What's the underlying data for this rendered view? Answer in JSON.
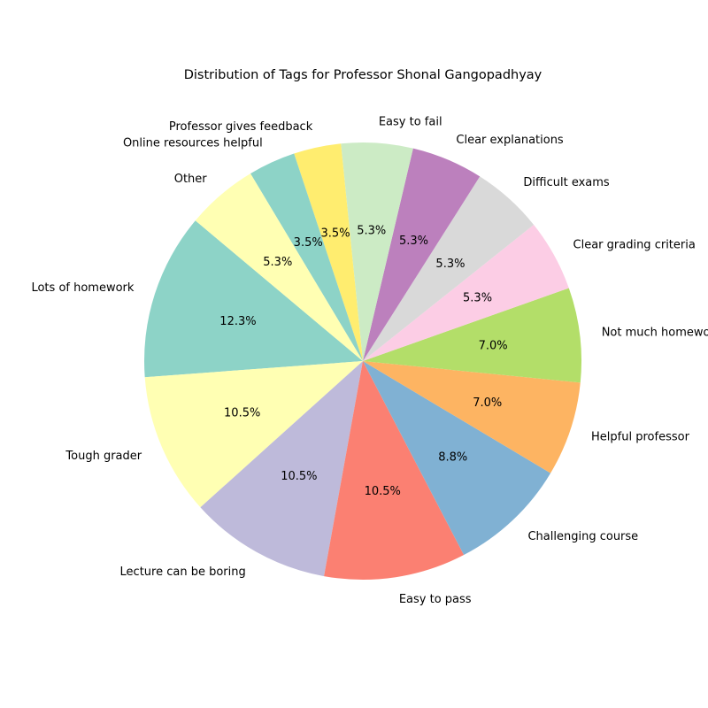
{
  "chart_data": {
    "type": "pie",
    "title": "Distribution of Tags for Professor Shonal Gangopadhyay",
    "start_angle_deg": 140,
    "direction": "counterclockwise",
    "slices": [
      {
        "label": "Lots of homework",
        "value": 12.3,
        "pct_label": "12.3%",
        "color": "#8dd3c7"
      },
      {
        "label": "Tough grader",
        "value": 10.5,
        "pct_label": "10.5%",
        "color": "#ffffb3"
      },
      {
        "label": "Lecture can be boring",
        "value": 10.5,
        "pct_label": "10.5%",
        "color": "#bebada"
      },
      {
        "label": "Easy to pass",
        "value": 10.5,
        "pct_label": "10.5%",
        "color": "#fb8072"
      },
      {
        "label": "Challenging course",
        "value": 8.8,
        "pct_label": "8.8%",
        "color": "#80b1d3"
      },
      {
        "label": "Helpful professor",
        "value": 7.0,
        "pct_label": "7.0%",
        "color": "#fdb462"
      },
      {
        "label": "Not much homework",
        "value": 7.0,
        "pct_label": "7.0%",
        "color": "#b3de69"
      },
      {
        "label": "Clear grading criteria",
        "value": 5.3,
        "pct_label": "5.3%",
        "color": "#fccde5"
      },
      {
        "label": "Difficult exams",
        "value": 5.3,
        "pct_label": "5.3%",
        "color": "#d9d9d9"
      },
      {
        "label": "Clear explanations",
        "value": 5.3,
        "pct_label": "5.3%",
        "color": "#bc80bd"
      },
      {
        "label": "Easy to fail",
        "value": 5.3,
        "pct_label": "5.3%",
        "color": "#ccebc5"
      },
      {
        "label": "Professor gives feedback",
        "value": 3.5,
        "pct_label": "3.5%",
        "color": "#ffed6f"
      },
      {
        "label": "Online resources helpful",
        "value": 3.5,
        "pct_label": "3.5%",
        "color": "#8dd3c7"
      },
      {
        "label": "Other",
        "value": 5.3,
        "pct_label": "5.3%",
        "color": "#ffffb3"
      }
    ]
  }
}
